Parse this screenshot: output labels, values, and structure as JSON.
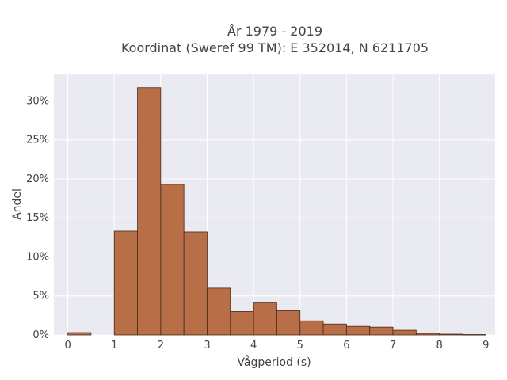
{
  "chart_data": {
    "type": "bar",
    "title_line1": "År 1979 - 2019",
    "title_line2": "Koordinat (Sweref 99 TM): E 352014, N 6211705",
    "xlabel": "Vågperiod (s)",
    "ylabel": "Andel",
    "bin_width": 0.5,
    "bin_starts": [
      0,
      0.5,
      1,
      1.5,
      2,
      2.5,
      3,
      3.5,
      4,
      4.5,
      5,
      5.5,
      6,
      6.5,
      7,
      7.5,
      8,
      8.5
    ],
    "values": [
      0.3,
      0,
      13.3,
      31.7,
      19.3,
      13.2,
      6.0,
      3.0,
      4.1,
      3.1,
      1.8,
      1.4,
      1.1,
      1.0,
      0.6,
      0.2,
      0.1,
      0.05
    ],
    "xlim": [
      -0.3,
      9.2
    ],
    "ylim": [
      0,
      33.5
    ],
    "x_ticks": [
      0,
      1,
      2,
      3,
      4,
      5,
      6,
      7,
      8,
      9
    ],
    "x_tick_labels": [
      "0",
      "1",
      "2",
      "3",
      "4",
      "5",
      "6",
      "7",
      "8",
      "9"
    ],
    "y_ticks": [
      0,
      5,
      10,
      15,
      20,
      25,
      30
    ],
    "y_tick_labels": [
      "0%",
      "5%",
      "10%",
      "15%",
      "20%",
      "25%",
      "30%"
    ],
    "grid": true,
    "colors": {
      "bar_fill": "#b86e46",
      "bar_edge": "#4a2a1a",
      "plot_bg": "#eaeaf2",
      "grid": "#ffffff"
    }
  }
}
